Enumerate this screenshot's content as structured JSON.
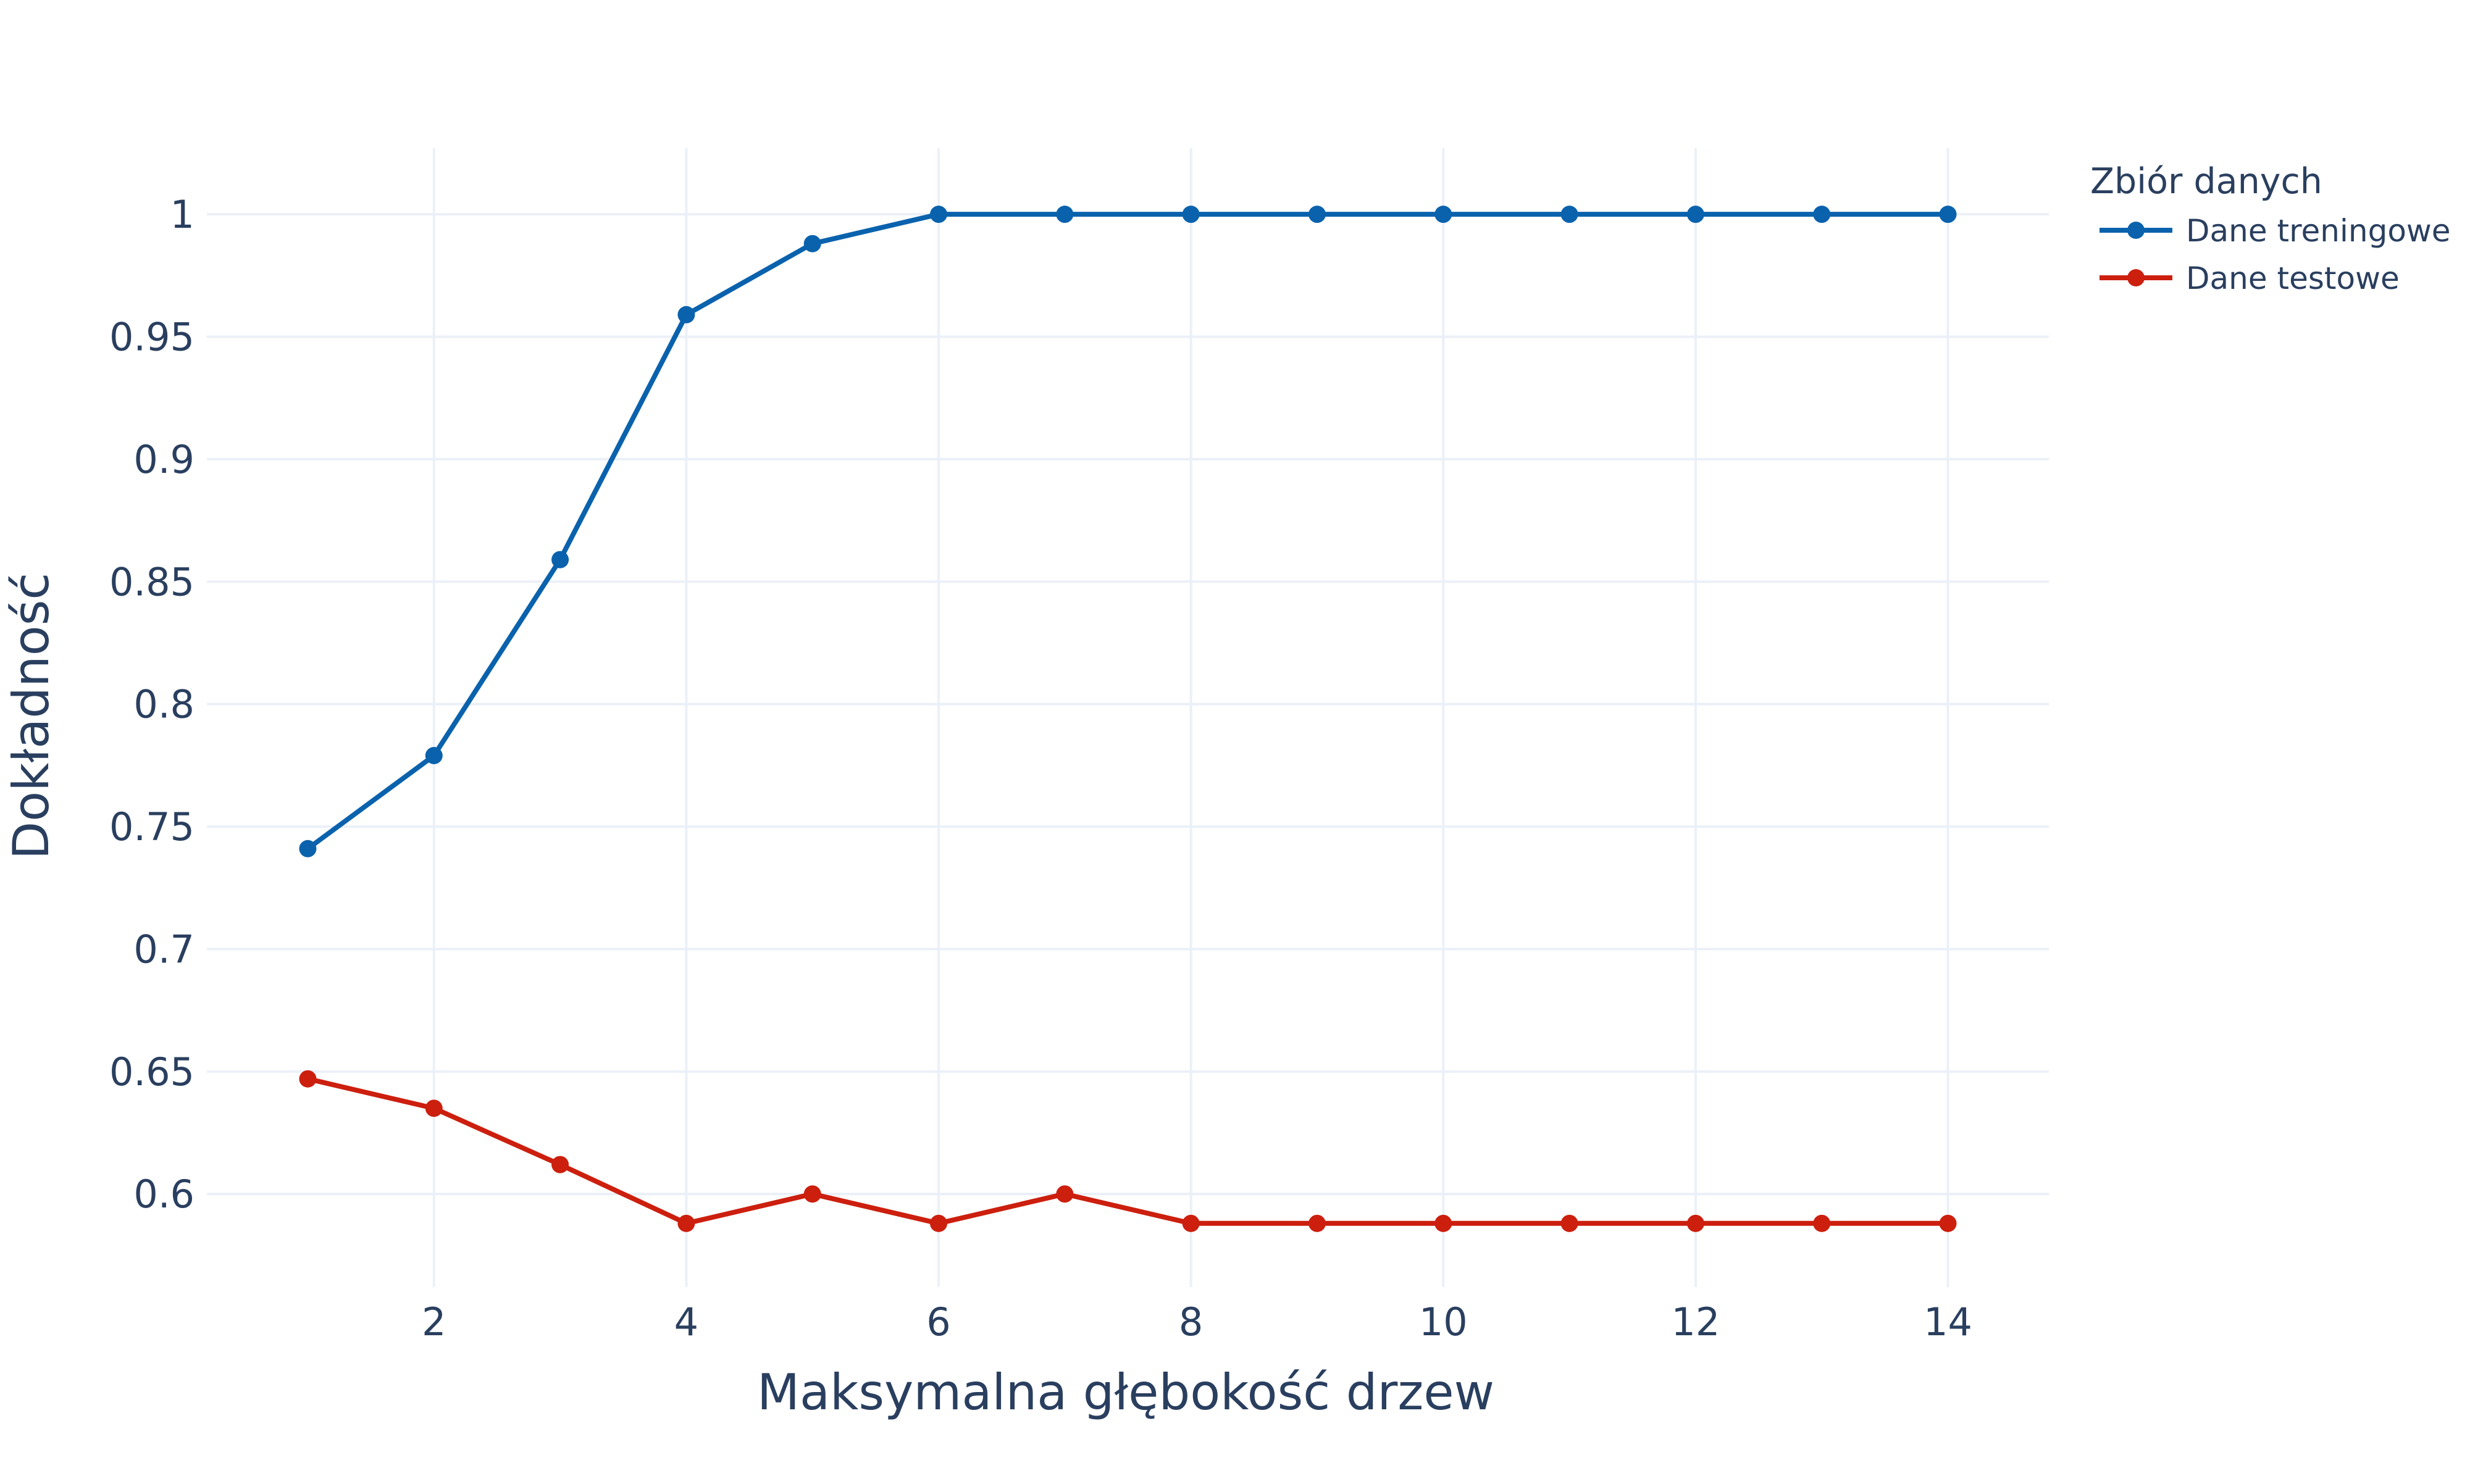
{
  "chart_data": {
    "type": "line",
    "title": "",
    "xlabel": "Maksymalna głębokość drzew",
    "ylabel": "Dokładność",
    "xlim": [
      0.2,
      14.8
    ],
    "ylim": [
      0.562,
      1.027
    ],
    "x_ticks": [
      2,
      4,
      6,
      8,
      10,
      12,
      14
    ],
    "x_tick_labels": [
      "2",
      "4",
      "6",
      "8",
      "10",
      "12",
      "14"
    ],
    "y_ticks": [
      0.6,
      0.65,
      0.7,
      0.75,
      0.8,
      0.85,
      0.9,
      0.95,
      1.0
    ],
    "y_tick_labels": [
      "0.6",
      "0.65",
      "0.7",
      "0.75",
      "0.8",
      "0.85",
      "0.9",
      "0.95",
      "1"
    ],
    "grid": true,
    "legend": {
      "title": "Zbiór danych",
      "placement": "top-right, outside plot"
    },
    "x": [
      1,
      2,
      3,
      4,
      5,
      6,
      7,
      8,
      9,
      10,
      11,
      12,
      13,
      14
    ],
    "series": [
      {
        "name": "Dane treningowe",
        "color": "#0a62ad",
        "values": [
          0.741,
          0.779,
          0.859,
          0.959,
          0.988,
          1.0,
          1.0,
          1.0,
          1.0,
          1.0,
          1.0,
          1.0,
          1.0,
          1.0
        ]
      },
      {
        "name": "Dane testowe",
        "color": "#cc1f0e",
        "values": [
          0.647,
          0.635,
          0.612,
          0.588,
          0.6,
          0.588,
          0.6,
          0.588,
          0.588,
          0.588,
          0.588,
          0.588,
          0.588,
          0.588
        ]
      }
    ]
  },
  "colors": {
    "text": "#2a3f5f",
    "grid": "#ebf0f8",
    "background": "#ffffff"
  }
}
